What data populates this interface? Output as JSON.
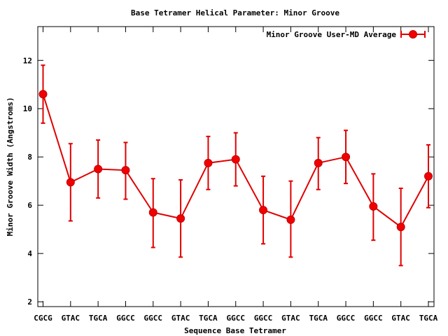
{
  "chart_data": {
    "type": "line",
    "title": "Base Tetramer Helical Parameter: Minor Groove",
    "xlabel": "Sequence Base Tetramer",
    "ylabel": "Minor Groove Width (Angstroms)",
    "ylim": [
      1.8,
      13.4
    ],
    "yticks": [
      2,
      4,
      6,
      8,
      10,
      12
    ],
    "categories": [
      "CGCG",
      "GTAC",
      "TGCA",
      "GGCC",
      "GGCC",
      "GTAC",
      "TGCA",
      "GGCC",
      "GGCC",
      "GTAC",
      "TGCA",
      "GGCC",
      "GGCC",
      "GTAC",
      "TGCA"
    ],
    "series": [
      {
        "name": "Minor Groove User-MD Average",
        "color": "#e00000",
        "values": [
          10.6,
          6.95,
          7.5,
          7.45,
          5.7,
          5.45,
          7.75,
          7.9,
          5.8,
          5.4,
          7.75,
          8.0,
          5.95,
          5.1,
          7.2
        ],
        "err_low": [
          9.4,
          5.35,
          6.3,
          6.25,
          4.25,
          3.85,
          6.65,
          6.8,
          4.4,
          3.85,
          6.65,
          6.9,
          4.55,
          3.5,
          5.9
        ],
        "err_high": [
          11.8,
          8.55,
          8.7,
          8.6,
          7.1,
          7.05,
          8.85,
          9.0,
          7.2,
          7.0,
          8.8,
          9.1,
          7.3,
          6.7,
          8.5
        ]
      }
    ],
    "grid": false,
    "legend": "top-right"
  }
}
